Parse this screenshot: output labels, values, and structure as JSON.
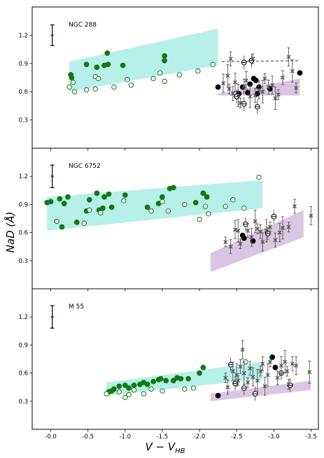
{
  "figure": {
    "xlabel_main": "V − V",
    "xlabel_sub": "HB",
    "ylabel": "NaD (Å)"
  },
  "chart_data": [
    {
      "type": "scatter",
      "panel_label": "NGC 288",
      "xlim": [
        0.25,
        -3.6
      ],
      "ylim": [
        0.0,
        1.5
      ],
      "xticks": [
        -0.0,
        -0.5,
        -1.0,
        -1.5,
        -2.0,
        -2.5,
        -3.0,
        -3.5
      ],
      "xtick_labels": [
        "-0.0",
        "-0.5",
        "-1.0",
        "-1.5",
        "-2.0",
        "-2.5",
        "-3.0",
        "-3.5"
      ],
      "yticks": [
        0.3,
        0.6,
        0.9,
        1.2
      ],
      "ytick_labels": [
        "0.3",
        "0.6",
        "0.9",
        "1.2"
      ],
      "error_reference": {
        "x": -0.02,
        "y": 1.2,
        "err": 0.11
      },
      "band_rgb": {
        "color": "#b6f0e8",
        "polygon": [
          [
            -0.25,
            0.92
          ],
          [
            -2.25,
            1.27
          ],
          [
            -2.25,
            0.88
          ],
          [
            -0.25,
            0.6
          ]
        ]
      },
      "band_agb": {
        "color": "#dac6e2",
        "polygon": [
          [
            -2.25,
            0.58
          ],
          [
            -3.35,
            0.74
          ],
          [
            -3.35,
            0.56
          ],
          [
            -2.25,
            0.56
          ]
        ]
      },
      "dashed_line": {
        "color": "#2a8a2a",
        "x": [
          -2.3,
          -3.35
        ],
        "y": [
          0.92,
          0.93
        ]
      },
      "series": [
        {
          "marker": "filled",
          "color": "#117a11",
          "points": [
            [
              -0.27,
              0.78
            ],
            [
              -0.28,
              0.75
            ],
            [
              -0.48,
              0.89
            ],
            [
              -0.62,
              0.86
            ],
            [
              -0.72,
              0.88
            ],
            [
              -0.76,
              1.01
            ],
            [
              -0.77,
              0.89
            ],
            [
              -0.97,
              0.88
            ],
            [
              -1.53,
              0.98
            ],
            [
              -1.53,
              0.93
            ]
          ]
        },
        {
          "marker": "open",
          "color": "#117a11",
          "points": [
            [
              -0.25,
              0.65
            ],
            [
              -0.32,
              0.6
            ],
            [
              -0.3,
              0.7
            ],
            [
              -0.48,
              0.62
            ],
            [
              -0.6,
              0.63
            ],
            [
              -0.6,
              0.76
            ],
            [
              -0.64,
              0.74
            ],
            [
              -0.85,
              0.65
            ],
            [
              -1.03,
              0.73
            ],
            [
              -1.08,
              0.67
            ],
            [
              -1.38,
              0.74
            ],
            [
              -1.47,
              0.8
            ],
            [
              -1.53,
              0.71
            ],
            [
              -1.73,
              0.78
            ],
            [
              -1.98,
              0.82
            ],
            [
              -2.18,
              0.89
            ]
          ]
        },
        {
          "marker": "filled",
          "color": "#000000",
          "points": [
            [
              -2.25,
              0.65
            ],
            [
              -2.53,
              0.58
            ],
            [
              -2.58,
              0.65
            ],
            [
              -2.65,
              0.59
            ],
            [
              -2.68,
              0.68
            ],
            [
              -2.73,
              0.74
            ],
            [
              -2.76,
              0.72
            ],
            [
              -2.8,
              0.65
            ],
            [
              -2.78,
              0.58
            ],
            [
              -2.95,
              0.63
            ],
            [
              -3.35,
              0.8
            ]
          ]
        },
        {
          "marker": "theta",
          "color": "#000000",
          "points": [
            [
              -2.6,
              0.47
            ],
            [
              -2.5,
              0.55
            ],
            [
              -2.6,
              0.91
            ],
            [
              -2.7,
              0.93
            ],
            [
              -2.78,
              0.44
            ]
          ]
        },
        {
          "marker": "cross",
          "color": "#555555",
          "points": [
            [
              -2.4,
              0.63
            ],
            [
              -2.45,
              0.58
            ],
            [
              -2.48,
              0.7
            ],
            [
              -2.52,
              0.56
            ],
            [
              -2.55,
              0.48
            ],
            [
              -2.6,
              0.66
            ],
            [
              -2.63,
              0.72
            ],
            [
              -2.68,
              0.55
            ],
            [
              -2.72,
              0.95
            ],
            [
              -2.75,
              0.56
            ],
            [
              -2.8,
              0.62
            ],
            [
              -2.85,
              0.6
            ],
            [
              -2.88,
              0.74
            ],
            [
              -2.93,
              0.65
            ],
            [
              -2.98,
              0.67
            ],
            [
              -3.02,
              0.53
            ],
            [
              -3.06,
              0.57
            ],
            [
              -3.12,
              0.75
            ],
            [
              -3.2,
              0.97
            ],
            [
              -3.25,
              0.82
            ],
            [
              -3.3,
              0.64
            ],
            [
              -2.42,
              0.95
            ],
            [
              -2.32,
              0.69
            ],
            [
              -2.38,
              0.77
            ]
          ]
        }
      ]
    },
    {
      "type": "scatter",
      "panel_label": "NGC 6752",
      "xlim": [
        0.25,
        -3.6
      ],
      "ylim": [
        0.0,
        1.5
      ],
      "xticks": [
        -0.0,
        -0.5,
        -1.0,
        -1.5,
        -2.0,
        -2.5,
        -3.0,
        -3.5
      ],
      "xtick_labels": [
        "-0.0",
        "-0.5",
        "-1.0",
        "-1.5",
        "-2.0",
        "-2.5",
        "-3.0",
        "-3.5"
      ],
      "yticks": [
        0.3,
        0.6,
        0.9,
        1.2
      ],
      "ytick_labels": [
        "0.3",
        "0.6",
        "0.9",
        "1.2"
      ],
      "error_reference": {
        "x": -0.02,
        "y": 1.2,
        "err": 0.12
      },
      "band_rgb": {
        "color": "#b6f0e8",
        "polygon": [
          [
            0.05,
            0.98
          ],
          [
            -2.85,
            1.16
          ],
          [
            -2.85,
            0.86
          ],
          [
            0.05,
            0.62
          ]
        ]
      },
      "band_agb": {
        "color": "#dac6e2",
        "polygon": [
          [
            -2.15,
            0.38
          ],
          [
            -3.4,
            0.84
          ],
          [
            -3.4,
            0.55
          ],
          [
            -2.15,
            0.18
          ]
        ]
      },
      "series": [
        {
          "marker": "filled",
          "color": "#117a11",
          "points": [
            [
              0.05,
              0.92
            ],
            [
              0.0,
              0.93
            ],
            [
              -0.12,
              0.96
            ],
            [
              -0.18,
              0.91
            ],
            [
              -0.23,
              0.98
            ],
            [
              -0.35,
              0.71
            ],
            [
              -0.48,
              0.83
            ],
            [
              -0.52,
              0.95
            ],
            [
              -0.62,
              1.02
            ],
            [
              -0.65,
              0.84
            ],
            [
              -0.7,
              0.86
            ],
            [
              -0.72,
              0.98
            ],
            [
              -0.78,
              1.01
            ],
            [
              -0.82,
              0.87
            ],
            [
              -1.0,
              1.0
            ],
            [
              -1.3,
              0.87
            ],
            [
              -1.45,
              0.91
            ],
            [
              -1.5,
              0.98
            ],
            [
              -1.6,
              1.07
            ],
            [
              -1.65,
              1.08
            ],
            [
              -1.95,
              0.92
            ],
            [
              -2.05,
              1.02
            ],
            [
              -2.1,
              0.98
            ],
            [
              -0.15,
              0.66
            ]
          ]
        },
        {
          "marker": "open",
          "color": "#117a11",
          "points": [
            [
              -0.08,
              0.72
            ],
            [
              -0.45,
              0.7
            ],
            [
              -0.52,
              0.84
            ],
            [
              -0.67,
              0.81
            ],
            [
              -0.98,
              0.94
            ],
            [
              -1.35,
              0.83
            ],
            [
              -1.5,
              0.93
            ],
            [
              -1.58,
              0.83
            ],
            [
              -1.8,
              0.9
            ],
            [
              -2.0,
              0.74
            ],
            [
              -2.08,
              0.88
            ],
            [
              -2.12,
              0.8
            ],
            [
              -2.35,
              0.88
            ],
            [
              -2.45,
              0.95
            ],
            [
              -2.6,
              0.86
            ],
            [
              -2.8,
              1.19
            ]
          ]
        },
        {
          "marker": "filled",
          "color": "#000000",
          "points": [
            [
              -2.58,
              0.57
            ],
            [
              -2.6,
              0.54
            ],
            [
              -2.72,
              0.51
            ]
          ]
        },
        {
          "marker": "theta",
          "color": "#000000",
          "points": [
            [
              -2.62,
              0.69
            ],
            [
              -2.92,
              0.59
            ],
            [
              -3.0,
              0.77
            ]
          ]
        },
        {
          "marker": "cross",
          "color": "#555555",
          "points": [
            [
              -2.35,
              0.5
            ],
            [
              -2.42,
              0.45
            ],
            [
              -2.48,
              0.63
            ],
            [
              -2.52,
              0.62
            ],
            [
              -2.55,
              0.48
            ],
            [
              -2.65,
              0.62
            ],
            [
              -2.7,
              0.55
            ],
            [
              -2.75,
              0.72
            ],
            [
              -2.78,
              0.64
            ],
            [
              -2.82,
              0.61
            ],
            [
              -2.85,
              0.5
            ],
            [
              -2.9,
              0.62
            ],
            [
              -2.95,
              0.66
            ],
            [
              -3.02,
              0.52
            ],
            [
              -3.08,
              0.6
            ],
            [
              -3.12,
              0.65
            ],
            [
              -3.2,
              0.66
            ],
            [
              -3.28,
              0.88
            ],
            [
              -3.5,
              0.78
            ]
          ]
        }
      ]
    },
    {
      "type": "scatter",
      "panel_label": "M 55",
      "xlim": [
        0.25,
        -3.6
      ],
      "ylim": [
        0.0,
        1.5
      ],
      "xticks": [
        -0.0,
        -0.5,
        -1.0,
        -1.5,
        -2.0,
        -2.5,
        -3.0,
        -3.5
      ],
      "xtick_labels": [
        "-0.0",
        "-0.5",
        "-1.0",
        "-1.5",
        "-2.0",
        "-2.5",
        "-3.0",
        "-3.5"
      ],
      "yticks": [
        0.3,
        0.6,
        0.9,
        1.2
      ],
      "ytick_labels": [
        "0.3",
        "0.6",
        "0.9",
        "1.2"
      ],
      "error_reference": {
        "x": -0.02,
        "y": 1.2,
        "err": 0.12
      },
      "band_rgb": {
        "color": "#b6f0e8",
        "polygon": [
          [
            -0.75,
            0.5
          ],
          [
            -2.85,
            0.72
          ],
          [
            -2.85,
            0.54
          ],
          [
            -0.75,
            0.36
          ]
        ]
      },
      "band_agb": {
        "color": "#dac6e2",
        "polygon": [
          [
            -2.15,
            0.38
          ],
          [
            -3.5,
            0.52
          ],
          [
            -3.5,
            0.42
          ],
          [
            -2.15,
            0.3
          ]
        ]
      },
      "series": [
        {
          "marker": "filled",
          "color": "#117a11",
          "points": [
            [
              -0.78,
              0.4
            ],
            [
              -0.82,
              0.41
            ],
            [
              -0.85,
              0.43
            ],
            [
              -0.92,
              0.46
            ],
            [
              -1.0,
              0.47
            ],
            [
              -1.05,
              0.44
            ],
            [
              -1.12,
              0.47
            ],
            [
              -1.2,
              0.48
            ],
            [
              -1.25,
              0.5
            ],
            [
              -1.3,
              0.48
            ],
            [
              -1.38,
              0.51
            ],
            [
              -1.45,
              0.53
            ],
            [
              -1.48,
              0.54
            ],
            [
              -1.55,
              0.52
            ],
            [
              -1.65,
              0.52
            ],
            [
              -1.7,
              0.55
            ],
            [
              -1.75,
              0.54
            ],
            [
              -1.85,
              0.54
            ],
            [
              -2.0,
              0.6
            ],
            [
              -2.05,
              0.66
            ]
          ]
        },
        {
          "marker": "open",
          "color": "#117a11",
          "points": [
            [
              -0.75,
              0.38
            ],
            [
              -0.92,
              0.4
            ],
            [
              -1.0,
              0.34
            ],
            [
              -1.05,
              0.37
            ],
            [
              -1.12,
              0.42
            ],
            [
              -1.25,
              0.38
            ],
            [
              -1.35,
              0.43
            ],
            [
              -1.5,
              0.41
            ],
            [
              -1.8,
              0.43
            ],
            [
              -1.92,
              0.44
            ],
            [
              -2.62,
              0.72
            ]
          ]
        },
        {
          "marker": "filled",
          "color": "#000000",
          "points": [
            [
              -2.25,
              0.36
            ],
            [
              -2.98,
              0.77
            ],
            [
              -3.02,
              0.66
            ]
          ]
        },
        {
          "marker": "theta",
          "color": "#000000",
          "points": [
            [
              -2.42,
              0.69
            ],
            [
              -2.48,
              0.49
            ],
            [
              -2.6,
              0.44
            ],
            [
              -2.75,
              0.38
            ],
            [
              -3.1,
              0.6
            ],
            [
              -3.22,
              0.47
            ]
          ]
        },
        {
          "marker": "cross",
          "color": "#555555",
          "points": [
            [
              -2.35,
              0.55
            ],
            [
              -2.38,
              0.45
            ],
            [
              -2.45,
              0.62
            ],
            [
              -2.5,
              0.58
            ],
            [
              -2.52,
              0.52
            ],
            [
              -2.55,
              0.67
            ],
            [
              -2.58,
              0.85
            ],
            [
              -2.6,
              0.6
            ],
            [
              -2.65,
              0.5
            ],
            [
              -2.68,
              0.65
            ],
            [
              -2.72,
              0.56
            ],
            [
              -2.78,
              0.52
            ],
            [
              -2.82,
              0.62
            ],
            [
              -2.85,
              0.7
            ],
            [
              -2.88,
              0.46
            ],
            [
              -2.92,
              0.58
            ],
            [
              -2.95,
              0.72
            ],
            [
              -3.05,
              0.55
            ],
            [
              -3.1,
              0.68
            ],
            [
              -3.15,
              0.72
            ],
            [
              -3.18,
              0.62
            ],
            [
              -3.25,
              0.7
            ],
            [
              -3.3,
              0.68
            ],
            [
              -3.48,
              0.61
            ],
            [
              -3.2,
              0.48
            ]
          ]
        }
      ]
    }
  ]
}
